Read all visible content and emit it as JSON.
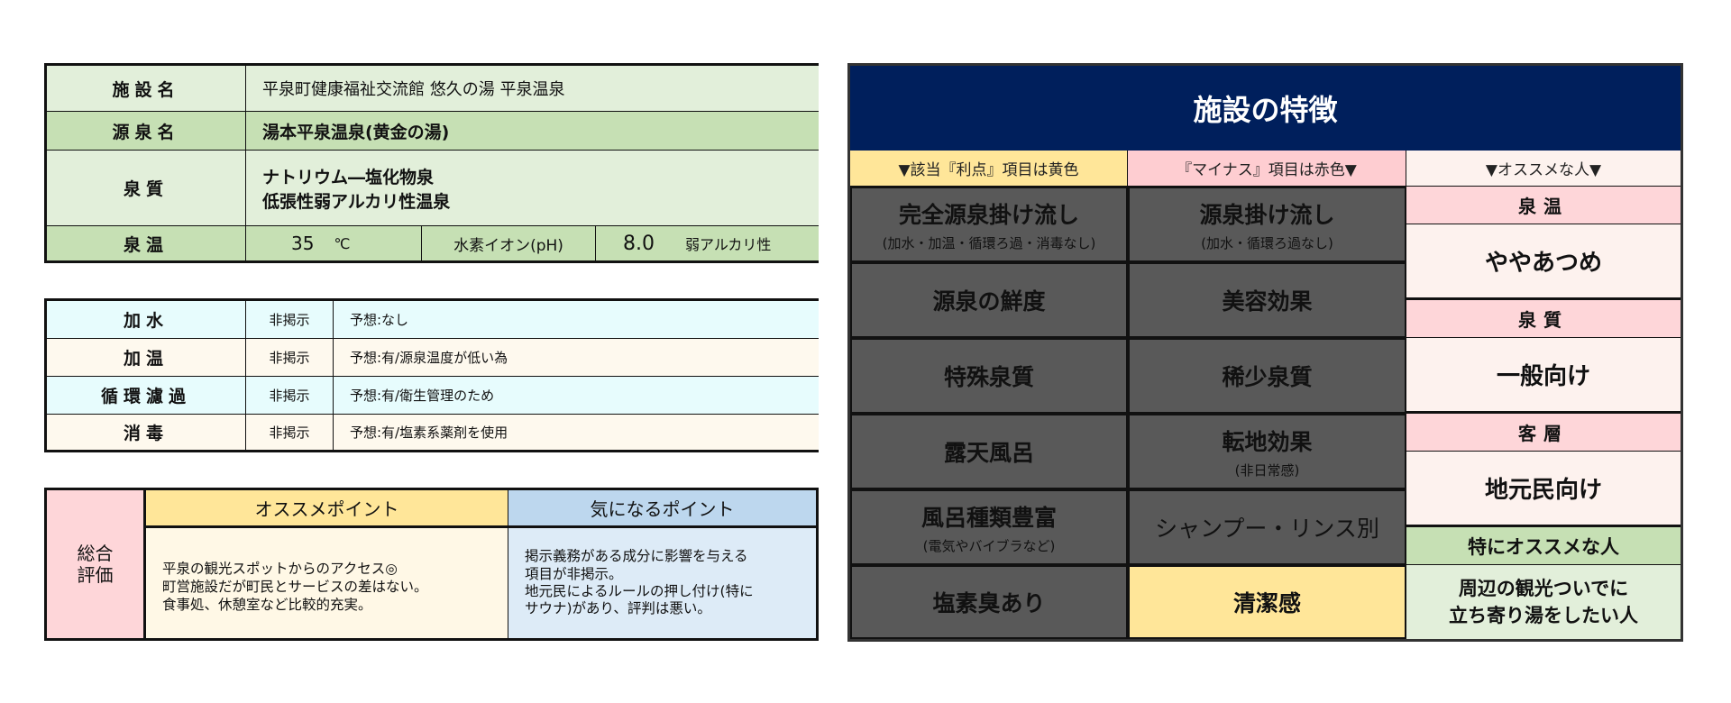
{
  "facility": {
    "name_label": "施設名",
    "name": "平泉町健康福祉交流館 悠久の湯 平泉温泉",
    "source_label": "源泉名",
    "source": "湯本平泉温泉(黄金の湯)",
    "quality_label": "泉質",
    "quality_line1": "ナトリウム―塩化物泉",
    "quality_line2": "低張性弱アルカリ性温泉",
    "temp_label": "泉温",
    "temp_value": "35",
    "temp_unit": "℃",
    "ph_label": "水素イオン(pH)",
    "ph_value": "8.0",
    "ph_note": "弱アルカリ性"
  },
  "treatment": [
    {
      "label": "加水",
      "status": "非掲示",
      "note": "予想:なし"
    },
    {
      "label": "加温",
      "status": "非掲示",
      "note": "予想:有/源泉温度が低い為"
    },
    {
      "label": "循環濾過",
      "status": "非掲示",
      "note": "予想:有/衛生管理のため"
    },
    {
      "label": "消毒",
      "status": "非掲示",
      "note": "予想:有/塩素系薬剤を使用"
    }
  ],
  "evaluation": {
    "label": "総合\n評価",
    "good_header": "オススメポイント",
    "good_text": "平泉の観光スポットからのアクセス◎\n町営施設だが町民とサービスの差はない。\n食事処、休憩室など比較的充実。",
    "concern_header": "気になるポイント",
    "concern_text": "掲示義務がある成分に影響を与える\n項目が非掲示。\n地元民によるルールの押し付け(特に\nサウナ)があり、評判は悪い。"
  },
  "features": {
    "title": "施設の特徴",
    "header_merit": "▼該当『利点』項目は黄色",
    "header_minus": "『マイナス』項目は赤色▼",
    "header_recommend": "▼オススメな人▼",
    "merits": [
      {
        "main": "完全源泉掛け流し",
        "sub": "(加水・加温・循環ろ過・消毒なし)"
      },
      {
        "main": "源泉の鮮度",
        "sub": ""
      },
      {
        "main": "特殊泉質",
        "sub": ""
      },
      {
        "main": "露天風呂",
        "sub": ""
      },
      {
        "main": "風呂種類豊富",
        "sub": "(電気やバイブラなど)"
      },
      {
        "main": "塩素臭あり",
        "sub": ""
      }
    ],
    "minus": [
      {
        "main": "源泉掛け流し",
        "sub": "(加水・循環ろ過なし)"
      },
      {
        "main": "美容効果",
        "sub": ""
      },
      {
        "main": "稀少泉質",
        "sub": ""
      },
      {
        "main": "転地効果",
        "sub": "(非日常感)"
      },
      {
        "main": "シャンプー・リンス別",
        "sub": ""
      },
      {
        "main": "清潔感",
        "sub": ""
      }
    ],
    "recommend": [
      {
        "label": "泉温",
        "value": "ややあつめ"
      },
      {
        "label": "泉質",
        "value": "一般向け"
      },
      {
        "label": "客層",
        "value": "地元民向け"
      }
    ],
    "special_label": "特にオススメな人",
    "special_value": "周辺の観光ついでに\n立ち寄り湯をしたい人"
  },
  "colors": {
    "navy": "#001f5c",
    "yellow": "#ffe699",
    "pink": "#fed6d9",
    "dark": "#595959",
    "green": "#c6e0b4"
  }
}
